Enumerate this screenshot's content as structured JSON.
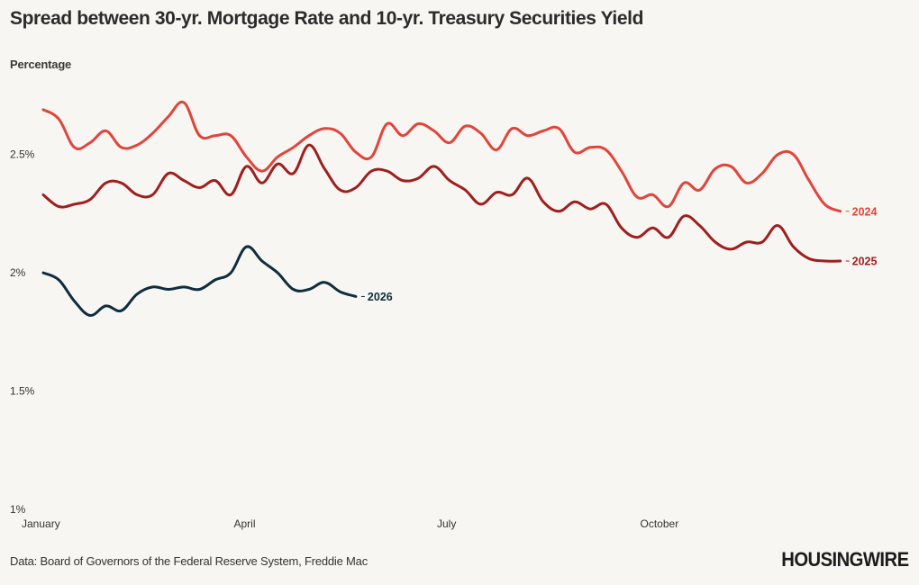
{
  "header": {
    "title": "Spread between 30-yr. Mortgage Rate and 10-yr. Treasury Securities Yield",
    "subtitle": "Percentage"
  },
  "footer": {
    "source": "Data: Board of Governors of the Federal Reserve System, Freddie Mac",
    "logo_text": "HOUSINGWIRE"
  },
  "colors": {
    "2024": "#e0453c",
    "2025": "#9e1f1f",
    "2026": "#0f2d3c",
    "background": "#f8f6f2"
  },
  "chart_data": {
    "type": "line",
    "title": "Spread between 30-yr. Mortgage Rate and 10-yr. Treasury Securities Yield",
    "ylabel": "Percentage",
    "xlabel": "",
    "y_unit": "%",
    "ylim": [
      1,
      2.75
    ],
    "yticks": [
      1,
      1.5,
      2,
      2.5
    ],
    "ytick_labels": [
      "1%",
      "1.5%",
      "2%",
      "2.5%"
    ],
    "xlim": [
      0,
      52
    ],
    "x_unit": "week of year",
    "xticks": [
      0,
      13,
      26,
      39
    ],
    "xtick_labels": [
      "January",
      "April",
      "July",
      "October"
    ],
    "grid": false,
    "legend": "end-of-line labels",
    "series": [
      {
        "name": "2024",
        "x": [
          0,
          1,
          2,
          3,
          4,
          5,
          6,
          7,
          8,
          9,
          10,
          11,
          12,
          13,
          14,
          15,
          16,
          17,
          18,
          19,
          20,
          21,
          22,
          23,
          24,
          25,
          26,
          27,
          28,
          29,
          30,
          31,
          32,
          33,
          34,
          35,
          36,
          37,
          38,
          39,
          40,
          41,
          42,
          43,
          44,
          45,
          46,
          47,
          48,
          49,
          50,
          51
        ],
        "values": [
          2.69,
          2.65,
          2.53,
          2.55,
          2.6,
          2.53,
          2.54,
          2.59,
          2.66,
          2.72,
          2.58,
          2.58,
          2.58,
          2.49,
          2.43,
          2.49,
          2.53,
          2.58,
          2.61,
          2.59,
          2.51,
          2.49,
          2.63,
          2.58,
          2.63,
          2.6,
          2.55,
          2.62,
          2.59,
          2.52,
          2.61,
          2.58,
          2.6,
          2.61,
          2.51,
          2.53,
          2.52,
          2.43,
          2.32,
          2.33,
          2.28,
          2.38,
          2.35,
          2.44,
          2.45,
          2.38,
          2.42,
          2.5,
          2.5,
          2.39,
          2.29,
          2.26
        ]
      },
      {
        "name": "2025",
        "x": [
          0,
          1,
          2,
          3,
          4,
          5,
          6,
          7,
          8,
          9,
          10,
          11,
          12,
          13,
          14,
          15,
          16,
          17,
          18,
          19,
          20,
          21,
          22,
          23,
          24,
          25,
          26,
          27,
          28,
          29,
          30,
          31,
          32,
          33,
          34,
          35,
          36,
          37,
          38,
          39,
          40,
          41,
          42,
          43,
          44,
          45,
          46,
          47,
          48,
          49,
          50,
          51
        ],
        "values": [
          2.33,
          2.28,
          2.29,
          2.31,
          2.38,
          2.38,
          2.33,
          2.33,
          2.42,
          2.39,
          2.36,
          2.39,
          2.33,
          2.45,
          2.38,
          2.46,
          2.42,
          2.54,
          2.44,
          2.35,
          2.36,
          2.43,
          2.43,
          2.39,
          2.4,
          2.45,
          2.39,
          2.35,
          2.29,
          2.34,
          2.33,
          2.4,
          2.3,
          2.26,
          2.3,
          2.27,
          2.29,
          2.19,
          2.15,
          2.19,
          2.15,
          2.24,
          2.2,
          2.13,
          2.1,
          2.13,
          2.13,
          2.2,
          2.11,
          2.06,
          2.05,
          2.05
        ]
      },
      {
        "name": "2026",
        "x": [
          0,
          1,
          2,
          3,
          4,
          5,
          6,
          7,
          8,
          9,
          10,
          11,
          12,
          13,
          14,
          15,
          16,
          17,
          18,
          19,
          20
        ],
        "values": [
          2.0,
          1.97,
          1.88,
          1.82,
          1.86,
          1.84,
          1.91,
          1.94,
          1.93,
          1.94,
          1.93,
          1.97,
          2.0,
          2.11,
          2.05,
          2.0,
          1.93,
          1.93,
          1.96,
          1.92,
          1.9
        ]
      }
    ]
  }
}
